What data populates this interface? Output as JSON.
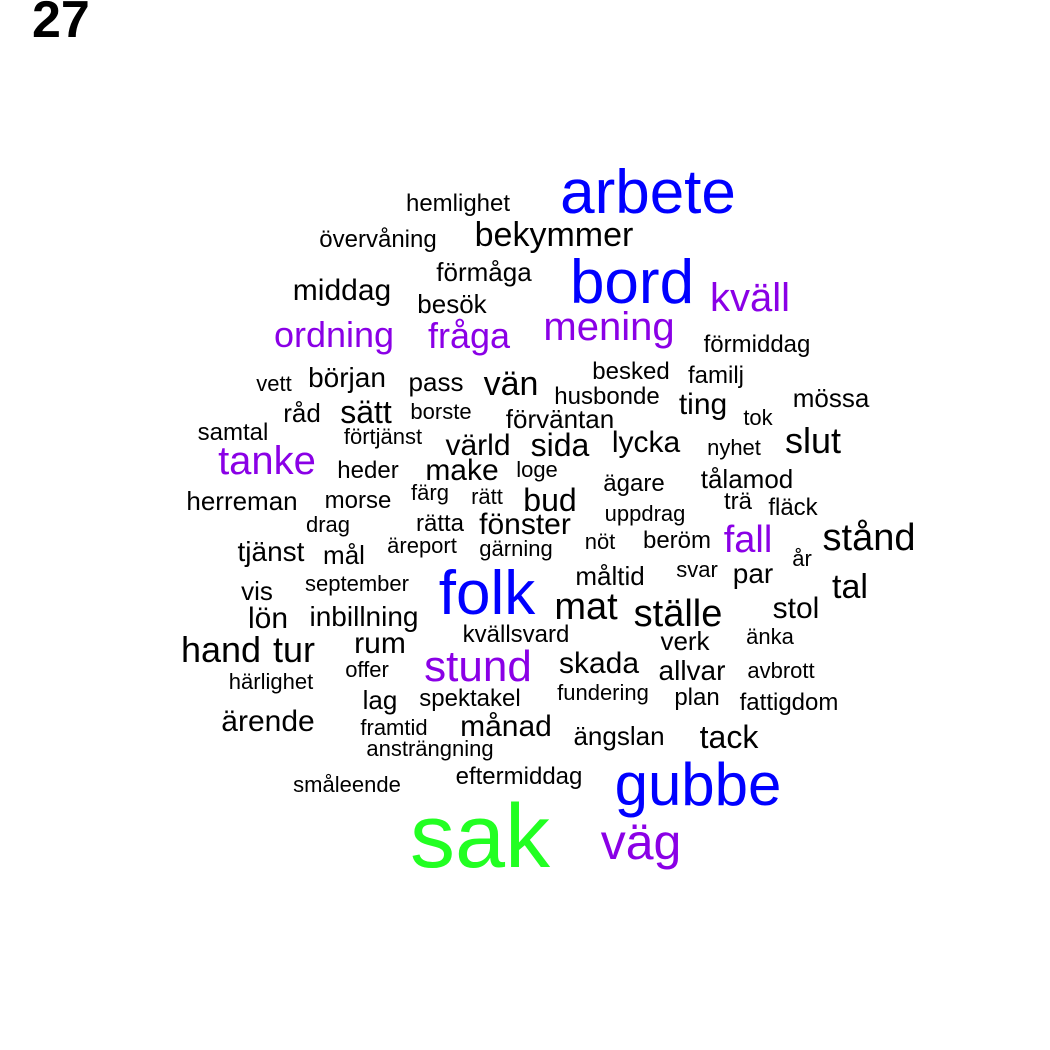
{
  "page_number": "27",
  "colors": {
    "level1": "#000000",
    "level2": "#8a00e6",
    "level3": "#0000ff",
    "level4": "#22ff22"
  },
  "words": [
    {
      "text": "sak",
      "color": "level4"
    },
    {
      "text": "arbete",
      "color": "level3"
    },
    {
      "text": "bord",
      "color": "level3"
    },
    {
      "text": "folk",
      "color": "level3"
    },
    {
      "text": "gubbe",
      "color": "level3"
    },
    {
      "text": "väg",
      "color": "level2"
    },
    {
      "text": "kväll",
      "color": "level2"
    },
    {
      "text": "mening",
      "color": "level2"
    },
    {
      "text": "ordning",
      "color": "level2"
    },
    {
      "text": "fråga",
      "color": "level2"
    },
    {
      "text": "tanke",
      "color": "level2"
    },
    {
      "text": "stund",
      "color": "level2"
    },
    {
      "text": "fall",
      "color": "level2"
    },
    {
      "text": "hemlighet",
      "color": "level1"
    },
    {
      "text": "bekymmer",
      "color": "level1"
    },
    {
      "text": "övervåning",
      "color": "level1"
    },
    {
      "text": "förmåga",
      "color": "level1"
    },
    {
      "text": "middag",
      "color": "level1"
    },
    {
      "text": "besök",
      "color": "level1"
    },
    {
      "text": "förmiddag",
      "color": "level1"
    },
    {
      "text": "besked",
      "color": "level1"
    },
    {
      "text": "familj",
      "color": "level1"
    },
    {
      "text": "vett",
      "color": "level1"
    },
    {
      "text": "början",
      "color": "level1"
    },
    {
      "text": "pass",
      "color": "level1"
    },
    {
      "text": "vän",
      "color": "level1"
    },
    {
      "text": "husbonde",
      "color": "level1"
    },
    {
      "text": "mössa",
      "color": "level1"
    },
    {
      "text": "ting",
      "color": "level1"
    },
    {
      "text": "råd",
      "color": "level1"
    },
    {
      "text": "sätt",
      "color": "level1"
    },
    {
      "text": "borste",
      "color": "level1"
    },
    {
      "text": "förväntan",
      "color": "level1"
    },
    {
      "text": "tok",
      "color": "level1"
    },
    {
      "text": "samtal",
      "color": "level1"
    },
    {
      "text": "förtjänst",
      "color": "level1"
    },
    {
      "text": "värld",
      "color": "level1"
    },
    {
      "text": "sida",
      "color": "level1"
    },
    {
      "text": "lycka",
      "color": "level1"
    },
    {
      "text": "nyhet",
      "color": "level1"
    },
    {
      "text": "slut",
      "color": "level1"
    },
    {
      "text": "heder",
      "color": "level1"
    },
    {
      "text": "make",
      "color": "level1"
    },
    {
      "text": "loge",
      "color": "level1"
    },
    {
      "text": "ägare",
      "color": "level1"
    },
    {
      "text": "tålamod",
      "color": "level1"
    },
    {
      "text": "herreman",
      "color": "level1"
    },
    {
      "text": "morse",
      "color": "level1"
    },
    {
      "text": "färg",
      "color": "level1"
    },
    {
      "text": "rätt",
      "color": "level1"
    },
    {
      "text": "bud",
      "color": "level1"
    },
    {
      "text": "trä",
      "color": "level1"
    },
    {
      "text": "fläck",
      "color": "level1"
    },
    {
      "text": "uppdrag",
      "color": "level1"
    },
    {
      "text": "drag",
      "color": "level1"
    },
    {
      "text": "rätta",
      "color": "level1"
    },
    {
      "text": "fönster",
      "color": "level1"
    },
    {
      "text": "stånd",
      "color": "level1"
    },
    {
      "text": "tjänst",
      "color": "level1"
    },
    {
      "text": "mål",
      "color": "level1"
    },
    {
      "text": "äreport",
      "color": "level1"
    },
    {
      "text": "gärning",
      "color": "level1"
    },
    {
      "text": "nöt",
      "color": "level1"
    },
    {
      "text": "beröm",
      "color": "level1"
    },
    {
      "text": "år",
      "color": "level1"
    },
    {
      "text": "svar",
      "color": "level1"
    },
    {
      "text": "par",
      "color": "level1"
    },
    {
      "text": "måltid",
      "color": "level1"
    },
    {
      "text": "september",
      "color": "level1"
    },
    {
      "text": "vis",
      "color": "level1"
    },
    {
      "text": "tal",
      "color": "level1"
    },
    {
      "text": "mat",
      "color": "level1"
    },
    {
      "text": "ställe",
      "color": "level1"
    },
    {
      "text": "stol",
      "color": "level1"
    },
    {
      "text": "lön",
      "color": "level1"
    },
    {
      "text": "inbillning",
      "color": "level1"
    },
    {
      "text": "kvällsvard",
      "color": "level1"
    },
    {
      "text": "verk",
      "color": "level1"
    },
    {
      "text": "änka",
      "color": "level1"
    },
    {
      "text": "hand",
      "color": "level1"
    },
    {
      "text": "tur",
      "color": "level1"
    },
    {
      "text": "rum",
      "color": "level1"
    },
    {
      "text": "offer",
      "color": "level1"
    },
    {
      "text": "skada",
      "color": "level1"
    },
    {
      "text": "allvar",
      "color": "level1"
    },
    {
      "text": "avbrott",
      "color": "level1"
    },
    {
      "text": "härlighet",
      "color": "level1"
    },
    {
      "text": "lag",
      "color": "level1"
    },
    {
      "text": "spektakel",
      "color": "level1"
    },
    {
      "text": "fundering",
      "color": "level1"
    },
    {
      "text": "plan",
      "color": "level1"
    },
    {
      "text": "fattigdom",
      "color": "level1"
    },
    {
      "text": "ärende",
      "color": "level1"
    },
    {
      "text": "framtid",
      "color": "level1"
    },
    {
      "text": "månad",
      "color": "level1"
    },
    {
      "text": "ängslan",
      "color": "level1"
    },
    {
      "text": "tack",
      "color": "level1"
    },
    {
      "text": "ansträngning",
      "color": "level1"
    },
    {
      "text": "eftermiddag",
      "color": "level1"
    },
    {
      "text": "småleende",
      "color": "level1"
    }
  ]
}
